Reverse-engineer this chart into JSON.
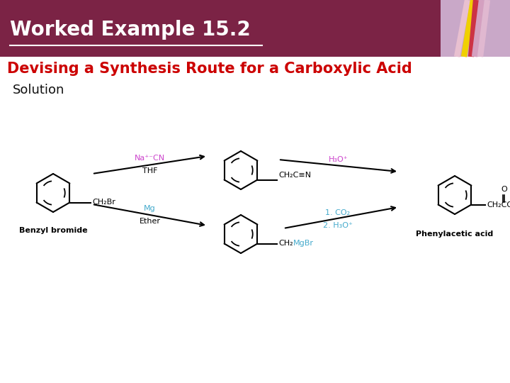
{
  "title": "Worked Example 15.2",
  "title_color": "#ffffff",
  "title_bg_color": "#7B2345",
  "title_fontsize": 20,
  "subtitle": "Devising a Synthesis Route for a Carboxylic Acid",
  "subtitle_color": "#cc0000",
  "subtitle_fontsize": 15,
  "solution_text": "Solution",
  "solution_fontsize": 13,
  "bg_color": "#ffffff",
  "benzyl_bromide_label": "Benzyl bromide",
  "phenylacetic_label": "Phenylacetic acid",
  "reagent1_color": "#cc44cc",
  "reagent2_color": "#cc44cc",
  "reagent3_color": "#44aacc",
  "reagent4_color": "#44aacc",
  "mgbr_color": "#44aacc",
  "label_fontsize": 8,
  "reagent_fontsize": 8
}
